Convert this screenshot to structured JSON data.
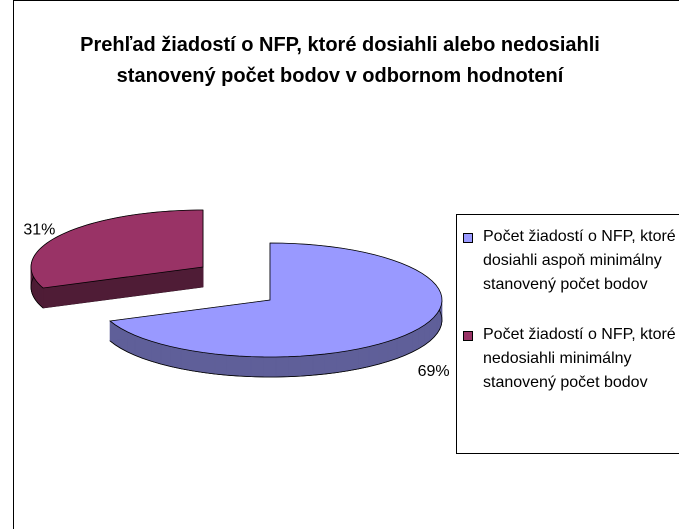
{
  "chart_data": {
    "type": "pie3d",
    "title": "Prehľad žiadostí o NFP, ktoré dosiahli alebo nedosiahli stanovený počet bodov v odbornom hodnotení",
    "categories": [
      "Počet žiadostí o NFP, ktoré dosiahli aspoň minimálny stanovený počet bodov",
      "Počet žiadostí o NFP, ktoré nedosiahli minimálny stanovený počet bodov"
    ],
    "values": [
      69,
      31
    ],
    "value_labels": [
      "69%",
      "31%"
    ],
    "colors": [
      "#9999ff",
      "#993366"
    ],
    "side_colors": [
      "#5f5f99",
      "#4f1c36"
    ],
    "legend": "right"
  }
}
